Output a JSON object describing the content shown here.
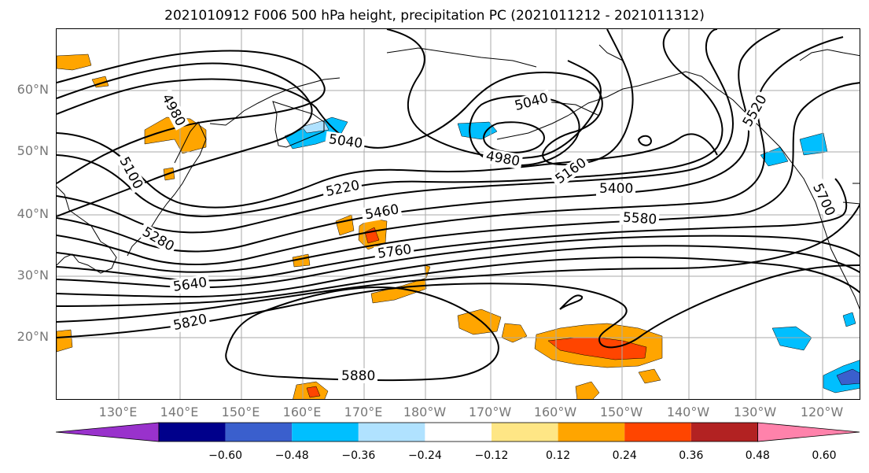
{
  "title": "2021010912 F006 500 hPa height, precipitation PC (2021011212 - 2021011312)",
  "lat_labels": [
    "60°N",
    "50°N",
    "40°N",
    "30°N",
    "20°N"
  ],
  "lon_labels": [
    "130°E",
    "140°E",
    "150°E",
    "160°E",
    "170°E",
    "180°W",
    "170°W",
    "160°W",
    "150°W",
    "140°W",
    "130°W",
    "120°W"
  ],
  "contour_labels": [
    {
      "text": "4980",
      "rot": 62
    },
    {
      "text": "5100",
      "rot": 62
    },
    {
      "text": "5280",
      "rot": 30
    },
    {
      "text": "5040",
      "rot": -15
    },
    {
      "text": "5040",
      "rot": 8
    },
    {
      "text": "4980",
      "rot": 10
    },
    {
      "text": "5160",
      "rot": -35
    },
    {
      "text": "5400",
      "rot": 0
    },
    {
      "text": "5580",
      "rot": 4
    },
    {
      "text": "5520",
      "rot": -60
    },
    {
      "text": "5700",
      "rot": 65
    },
    {
      "text": "5220",
      "rot": -12
    },
    {
      "text": "5460",
      "rot": -10
    },
    {
      "text": "5760",
      "rot": -8
    },
    {
      "text": "5640",
      "rot": -8
    },
    {
      "text": "5820",
      "rot": -12
    },
    {
      "text": "5880",
      "rot": 0
    }
  ],
  "colorbar": {
    "ticks": [
      "−0.60",
      "−0.48",
      "−0.36",
      "−0.24",
      "−0.12",
      "0.12",
      "0.24",
      "0.36",
      "0.48",
      "0.60"
    ],
    "colors": [
      "#9932cc",
      "#00008b",
      "#3a5fcd",
      "#00bfff",
      "#b0e2ff",
      "#ffffff",
      "#fee685",
      "#ffa500",
      "#ff4500",
      "#b22222",
      "#ff82ab"
    ]
  }
}
